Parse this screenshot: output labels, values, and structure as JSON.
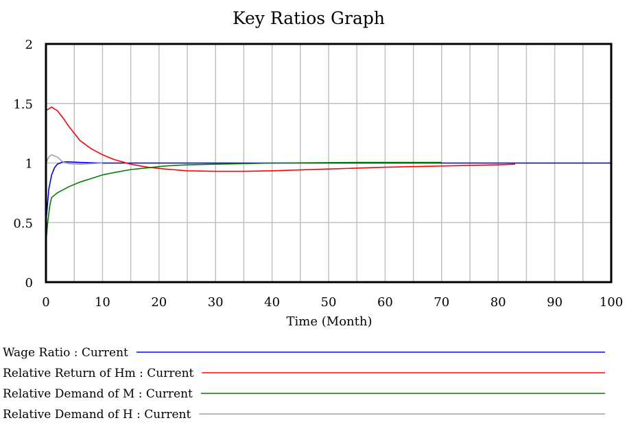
{
  "chart_data": {
    "type": "line",
    "title": "Key Ratios Graph",
    "xlabel": "Time (Month)",
    "ylabel": "",
    "xlim": [
      0,
      100
    ],
    "ylim": [
      0,
      2
    ],
    "x_ticks": [
      "0",
      "10",
      "20",
      "30",
      "40",
      "50",
      "60",
      "70",
      "80",
      "90",
      "100"
    ],
    "y_ticks": [
      "0",
      "0.5",
      "1",
      "1.5",
      "2"
    ],
    "grid": true,
    "legend_position": "bottom",
    "series": [
      {
        "name": "Wage Ratio : Current",
        "color": "#0000ff",
        "points": [
          [
            0,
            0.5
          ],
          [
            0.5,
            0.78
          ],
          [
            1,
            0.9
          ],
          [
            1.5,
            0.96
          ],
          [
            2,
            0.99
          ],
          [
            3,
            1.01
          ],
          [
            4,
            1.01
          ],
          [
            6,
            1.005
          ],
          [
            10,
            1.0
          ],
          [
            20,
            1.0
          ],
          [
            40,
            1.0
          ],
          [
            60,
            1.0
          ],
          [
            80,
            1.0
          ],
          [
            100,
            1.0
          ]
        ]
      },
      {
        "name": "Relative Return of Hm : Current",
        "color": "#ff0000",
        "points": [
          [
            0,
            1.44
          ],
          [
            1,
            1.47
          ],
          [
            2,
            1.44
          ],
          [
            3,
            1.38
          ],
          [
            4,
            1.31
          ],
          [
            5,
            1.25
          ],
          [
            6,
            1.19
          ],
          [
            8,
            1.12
          ],
          [
            10,
            1.07
          ],
          [
            12,
            1.03
          ],
          [
            15,
            0.99
          ],
          [
            18,
            0.965
          ],
          [
            21,
            0.95
          ],
          [
            25,
            0.935
          ],
          [
            30,
            0.93
          ],
          [
            35,
            0.93
          ],
          [
            40,
            0.935
          ],
          [
            50,
            0.95
          ],
          [
            60,
            0.965
          ],
          [
            70,
            0.975
          ],
          [
            80,
            0.985
          ],
          [
            83,
            0.99
          ]
        ]
      },
      {
        "name": "Relative Demand of M : Current",
        "color": "#008000",
        "points": [
          [
            0,
            0.33
          ],
          [
            0.3,
            0.5
          ],
          [
            0.7,
            0.65
          ],
          [
            1,
            0.71
          ],
          [
            2,
            0.75
          ],
          [
            4,
            0.8
          ],
          [
            6,
            0.84
          ],
          [
            8,
            0.87
          ],
          [
            10,
            0.9
          ],
          [
            12,
            0.92
          ],
          [
            15,
            0.945
          ],
          [
            18,
            0.96
          ],
          [
            21,
            0.975
          ],
          [
            25,
            0.985
          ],
          [
            30,
            0.99
          ],
          [
            40,
            1.0
          ],
          [
            55,
            1.005
          ],
          [
            70,
            1.005
          ]
        ]
      },
      {
        "name": "Relative Demand of H : Current",
        "color": "#a0a0a0",
        "points": [
          [
            0,
            1.0
          ],
          [
            0.5,
            1.05
          ],
          [
            1,
            1.07
          ],
          [
            2,
            1.05
          ],
          [
            3,
            1.01
          ],
          [
            4,
            0.995
          ],
          [
            6,
            0.99
          ],
          [
            8,
            0.995
          ],
          [
            10,
            1.0
          ]
        ]
      }
    ]
  }
}
